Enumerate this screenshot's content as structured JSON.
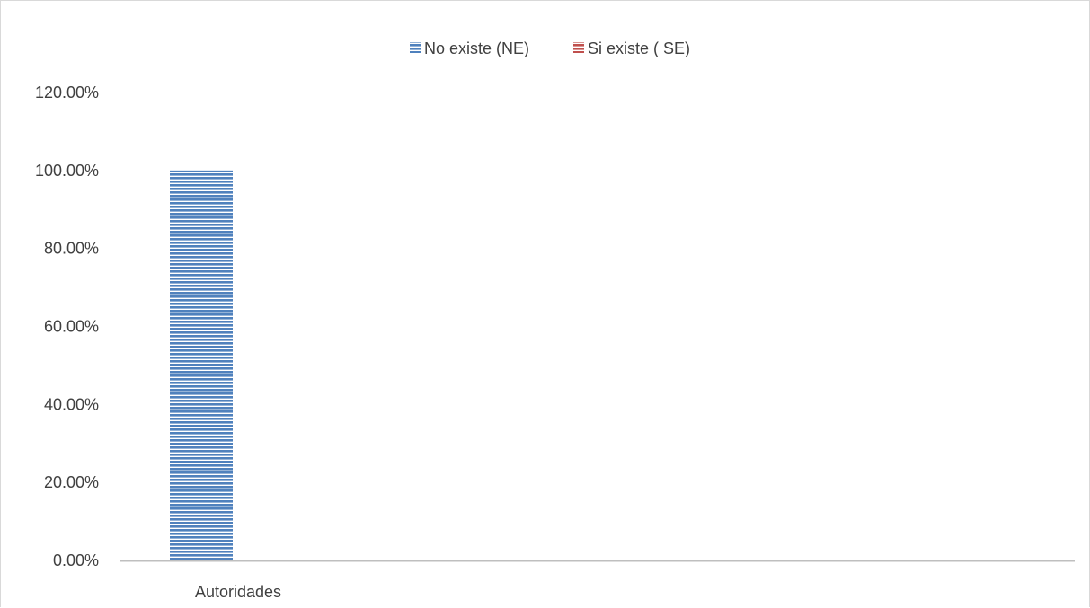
{
  "chart_data": {
    "type": "bar",
    "categories": [
      "Autoridades"
    ],
    "series": [
      {
        "name": "No existe (NE)",
        "values": [
          1.0
        ],
        "color": "#4f81bd"
      },
      {
        "name": "Si existe ( SE)",
        "values": [
          0
        ],
        "color": "#c0504d"
      }
    ],
    "yticks": [
      "0.00%",
      "20.00%",
      "40.00%",
      "60.00%",
      "80.00%",
      "100.00%",
      "120.00%"
    ],
    "ylim": [
      0,
      1.2
    ],
    "grid": false,
    "legend_position": "top-center",
    "bar_pattern": "horizontal-stripes"
  }
}
